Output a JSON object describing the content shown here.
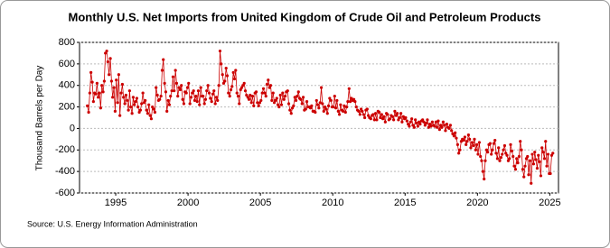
{
  "chart_data": {
    "type": "line",
    "title": "Monthly U.S. Net Imports from United Kingdom of Crude Oil and Petroleum Products",
    "y_label": "Thousand Barrels per Day",
    "source": "Source: U.S. Energy Information Administration",
    "xlim": [
      1992.5,
      2025.6
    ],
    "xticks": [
      1995,
      2000,
      2005,
      2010,
      2015,
      2020,
      2025
    ],
    "ylim": [
      -600,
      800
    ],
    "yticks": [
      -600,
      -400,
      -200,
      0,
      200,
      400,
      600,
      800
    ],
    "grid": true,
    "markers": true,
    "x": [
      1993.04,
      1993.13,
      1993.21,
      1993.29,
      1993.38,
      1993.46,
      1993.54,
      1993.63,
      1993.71,
      1993.79,
      1993.88,
      1993.96,
      1994.04,
      1994.13,
      1994.21,
      1994.29,
      1994.38,
      1994.46,
      1994.54,
      1994.63,
      1994.71,
      1994.79,
      1994.88,
      1994.96,
      1995.04,
      1995.13,
      1995.21,
      1995.29,
      1995.38,
      1995.46,
      1995.54,
      1995.63,
      1995.71,
      1995.79,
      1995.88,
      1995.96,
      1996.04,
      1996.13,
      1996.21,
      1996.29,
      1996.38,
      1996.46,
      1996.54,
      1996.63,
      1996.71,
      1996.79,
      1996.88,
      1996.96,
      1997.04,
      1997.13,
      1997.21,
      1997.29,
      1997.38,
      1997.46,
      1997.54,
      1997.63,
      1997.71,
      1997.79,
      1997.88,
      1997.96,
      1998.04,
      1998.13,
      1998.21,
      1998.29,
      1998.38,
      1998.46,
      1998.54,
      1998.63,
      1998.71,
      1998.79,
      1998.88,
      1998.96,
      1999.04,
      1999.13,
      1999.21,
      1999.29,
      1999.38,
      1999.46,
      1999.54,
      1999.63,
      1999.71,
      1999.79,
      1999.88,
      1999.96,
      2000.04,
      2000.13,
      2000.21,
      2000.29,
      2000.38,
      2000.46,
      2000.54,
      2000.63,
      2000.71,
      2000.79,
      2000.88,
      2000.96,
      2001.04,
      2001.13,
      2001.21,
      2001.29,
      2001.38,
      2001.46,
      2001.54,
      2001.63,
      2001.71,
      2001.79,
      2001.88,
      2001.96,
      2002.04,
      2002.13,
      2002.21,
      2002.29,
      2002.38,
      2002.46,
      2002.54,
      2002.63,
      2002.71,
      2002.79,
      2002.88,
      2002.96,
      2003.04,
      2003.13,
      2003.21,
      2003.29,
      2003.38,
      2003.46,
      2003.54,
      2003.63,
      2003.71,
      2003.79,
      2003.88,
      2003.96,
      2004.04,
      2004.13,
      2004.21,
      2004.29,
      2004.38,
      2004.46,
      2004.54,
      2004.63,
      2004.71,
      2004.79,
      2004.88,
      2004.96,
      2005.04,
      2005.13,
      2005.21,
      2005.29,
      2005.38,
      2005.46,
      2005.54,
      2005.63,
      2005.71,
      2005.79,
      2005.88,
      2005.96,
      2006.04,
      2006.13,
      2006.21,
      2006.29,
      2006.38,
      2006.46,
      2006.54,
      2006.63,
      2006.71,
      2006.79,
      2006.88,
      2006.96,
      2007.04,
      2007.13,
      2007.21,
      2007.29,
      2007.38,
      2007.46,
      2007.54,
      2007.63,
      2007.71,
      2007.79,
      2007.88,
      2007.96,
      2008.04,
      2008.13,
      2008.21,
      2008.29,
      2008.38,
      2008.46,
      2008.54,
      2008.63,
      2008.71,
      2008.79,
      2008.88,
      2008.96,
      2009.04,
      2009.13,
      2009.21,
      2009.29,
      2009.38,
      2009.46,
      2009.54,
      2009.63,
      2009.71,
      2009.79,
      2009.88,
      2009.96,
      2010.04,
      2010.13,
      2010.21,
      2010.29,
      2010.38,
      2010.46,
      2010.54,
      2010.63,
      2010.71,
      2010.79,
      2010.88,
      2010.96,
      2011.04,
      2011.13,
      2011.21,
      2011.29,
      2011.38,
      2011.46,
      2011.54,
      2011.63,
      2011.71,
      2011.79,
      2011.88,
      2011.96,
      2012.04,
      2012.13,
      2012.21,
      2012.29,
      2012.38,
      2012.46,
      2012.54,
      2012.63,
      2012.71,
      2012.79,
      2012.88,
      2012.96,
      2013.04,
      2013.13,
      2013.21,
      2013.29,
      2013.38,
      2013.46,
      2013.54,
      2013.63,
      2013.71,
      2013.79,
      2013.88,
      2013.96,
      2014.04,
      2014.13,
      2014.21,
      2014.29,
      2014.38,
      2014.46,
      2014.54,
      2014.63,
      2014.71,
      2014.79,
      2014.88,
      2014.96,
      2015.04,
      2015.13,
      2015.21,
      2015.29,
      2015.38,
      2015.46,
      2015.54,
      2015.63,
      2015.71,
      2015.79,
      2015.88,
      2015.96,
      2016.04,
      2016.13,
      2016.21,
      2016.29,
      2016.38,
      2016.46,
      2016.54,
      2016.63,
      2016.71,
      2016.79,
      2016.88,
      2016.96,
      2017.04,
      2017.13,
      2017.21,
      2017.29,
      2017.38,
      2017.46,
      2017.54,
      2017.63,
      2017.71,
      2017.79,
      2017.88,
      2017.96,
      2018.04,
      2018.13,
      2018.21,
      2018.29,
      2018.38,
      2018.46,
      2018.54,
      2018.63,
      2018.71,
      2018.79,
      2018.88,
      2018.96,
      2019.04,
      2019.13,
      2019.21,
      2019.29,
      2019.38,
      2019.46,
      2019.54,
      2019.63,
      2019.71,
      2019.79,
      2019.88,
      2019.96,
      2020.04,
      2020.13,
      2020.21,
      2020.29,
      2020.38,
      2020.46,
      2020.54,
      2020.63,
      2020.71,
      2020.79,
      2020.88,
      2020.96,
      2021.04,
      2021.13,
      2021.21,
      2021.29,
      2021.38,
      2021.46,
      2021.54,
      2021.63,
      2021.71,
      2021.79,
      2021.88,
      2021.96,
      2022.04,
      2022.13,
      2022.21,
      2022.29,
      2022.38,
      2022.46,
      2022.54,
      2022.63,
      2022.71,
      2022.79,
      2022.88,
      2022.96,
      2023.04,
      2023.13,
      2023.21,
      2023.29,
      2023.38,
      2023.46,
      2023.54,
      2023.63,
      2023.71,
      2023.79,
      2023.88,
      2023.96,
      2024.04,
      2024.13,
      2024.21,
      2024.29,
      2024.38,
      2024.46,
      2024.54,
      2024.63,
      2024.71,
      2024.79,
      2024.88,
      2024.96,
      2025.04,
      2025.13,
      2025.21
    ],
    "series": [
      {
        "color": "#cc0000",
        "values": [
          210,
          150,
          330,
          520,
          430,
          250,
          330,
          320,
          420,
          290,
          330,
          190,
          400,
          340,
          440,
          700,
          720,
          620,
          500,
          650,
          440,
          290,
          380,
          160,
          450,
          240,
          500,
          120,
          330,
          410,
          290,
          230,
          310,
          260,
          170,
          350,
          200,
          140,
          290,
          220,
          250,
          280,
          200,
          150,
          170,
          230,
          330,
          240,
          260,
          170,
          140,
          220,
          120,
          90,
          200,
          180,
          150,
          380,
          310,
          260,
          270,
          300,
          540,
          640,
          420,
          340,
          160,
          260,
          220,
          300,
          350,
          480,
          350,
          540,
          420,
          300,
          380,
          360,
          400,
          270,
          230,
          340,
          330,
          380,
          420,
          230,
          290,
          330,
          350,
          260,
          300,
          250,
          350,
          220,
          380,
          300,
          300,
          230,
          270,
          350,
          400,
          330,
          280,
          250,
          320,
          350,
          230,
          290,
          260,
          400,
          720,
          600,
          500,
          420,
          440,
          560,
          490,
          330,
          300,
          360,
          390,
          520,
          460,
          540,
          330,
          300,
          230,
          360,
          380,
          400,
          420,
          350,
          310,
          290,
          270,
          310,
          240,
          300,
          210,
          330,
          340,
          240,
          210,
          240,
          260,
          330,
          370,
          330,
          300,
          410,
          450,
          380,
          400,
          260,
          330,
          240,
          260,
          280,
          220,
          200,
          310,
          220,
          330,
          270,
          300,
          340,
          350,
          230,
          170,
          140,
          190,
          210,
          290,
          260,
          300,
          340,
          280,
          270,
          230,
          290,
          170,
          180,
          250,
          200,
          200,
          190,
          210,
          160,
          160,
          150,
          260,
          220,
          190,
          240,
          380,
          230,
          160,
          200,
          180,
          140,
          210,
          280,
          260,
          200,
          200,
          300,
          190,
          260,
          160,
          130,
          220,
          170,
          160,
          210,
          150,
          200,
          250,
          370,
          250,
          280,
          260,
          270,
          250,
          200,
          170,
          160,
          130,
          180,
          160,
          130,
          100,
          170,
          180,
          120,
          100,
          90,
          120,
          130,
          80,
          140,
          80,
          160,
          150,
          100,
          130,
          90,
          110,
          60,
          140,
          130,
          80,
          90,
          120,
          110,
          80,
          160,
          120,
          140,
          80,
          100,
          140,
          60,
          110,
          90,
          100,
          70,
          40,
          20,
          60,
          90,
          30,
          10,
          80,
          50,
          20,
          60,
          40,
          70,
          80,
          60,
          30,
          50,
          80,
          10,
          40,
          20,
          60,
          30,
          20,
          60,
          10,
          70,
          -10,
          30,
          10,
          60,
          30,
          -20,
          40,
          10,
          0,
          30,
          -20,
          -50,
          -70,
          -40,
          -90,
          -150,
          -230,
          -200,
          -120,
          -100,
          -110,
          -80,
          -150,
          -120,
          -60,
          -100,
          -180,
          -130,
          -160,
          -100,
          -200,
          -150,
          -240,
          -130,
          -260,
          -300,
          -400,
          -470,
          -300,
          -200,
          -220,
          -150,
          -140,
          -240,
          -200,
          -140,
          -110,
          -230,
          -280,
          -180,
          -300,
          -270,
          -240,
          -200,
          -160,
          -230,
          -250,
          -300,
          -280,
          -150,
          -210,
          -260,
          -350,
          -380,
          -280,
          -320,
          -260,
          -120,
          -200,
          -380,
          -450,
          -350,
          -280,
          -260,
          -430,
          -300,
          -510,
          -240,
          -330,
          -220,
          -290,
          -370,
          -250,
          -310,
          -440,
          -180,
          -220,
          -280,
          -120,
          -350,
          -240,
          -420,
          -420,
          -250,
          -230
        ]
      }
    ]
  }
}
